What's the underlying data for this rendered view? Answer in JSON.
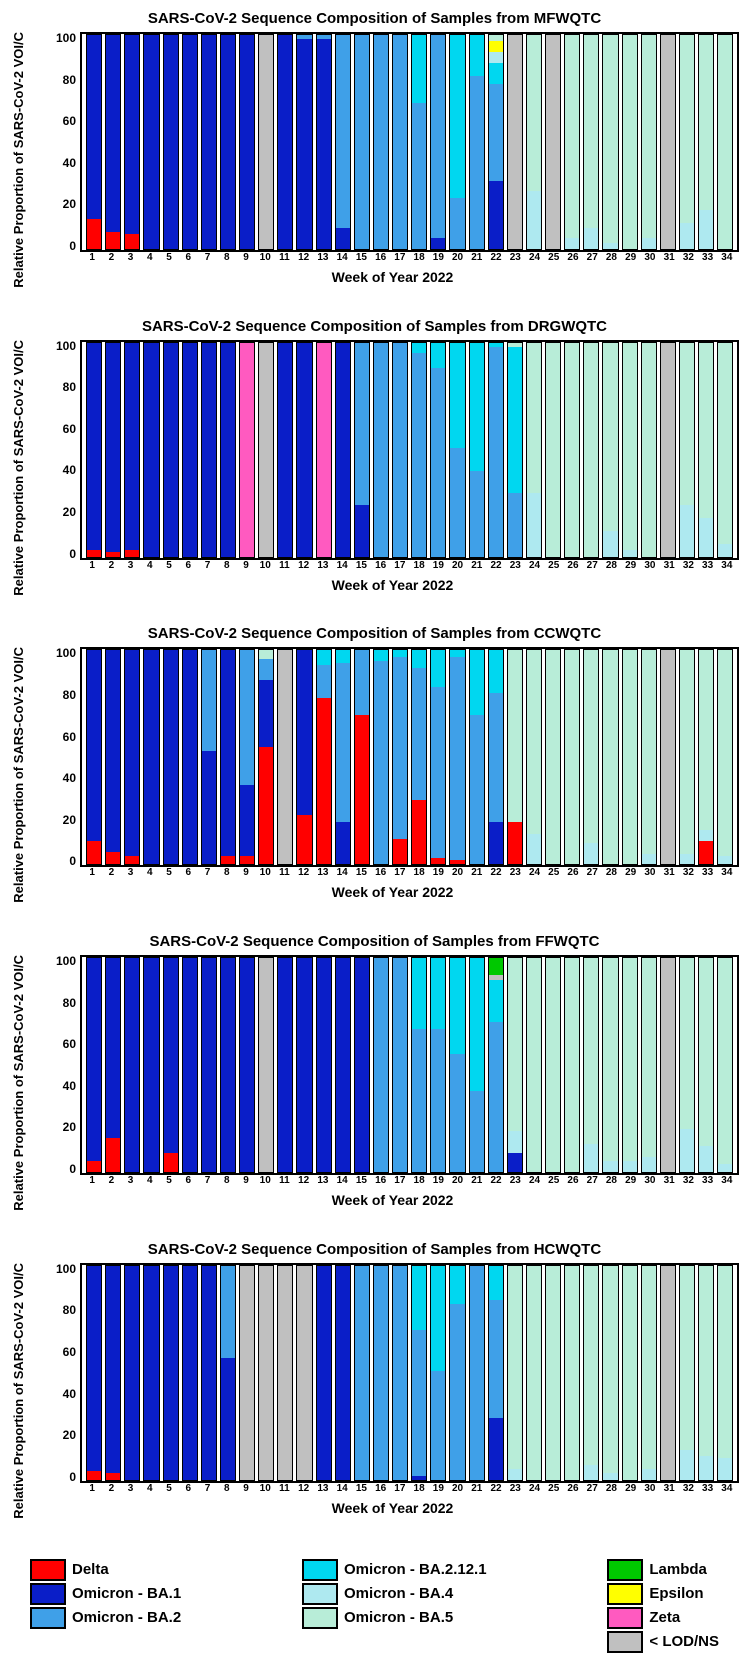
{
  "colors": {
    "Delta": "#ff0000",
    "BA1": "#0a1ec8",
    "BA2": "#3fa0e8",
    "BA2121": "#00d7f0",
    "BA4": "#aee9f0",
    "BA5": "#b8edd8",
    "Lambda": "#00c800",
    "Epsilon": "#ffff00",
    "Zeta": "#ff5ac0",
    "LOD": "#c0c0c0"
  },
  "legend": [
    [
      {
        "label": "Delta",
        "color": "Delta"
      },
      {
        "label": "Omicron - BA.1",
        "color": "BA1"
      },
      {
        "label": "Omicron - BA.2",
        "color": "BA2"
      }
    ],
    [
      {
        "label": "Omicron - BA.2.12.1",
        "color": "BA2121"
      },
      {
        "label": "Omicron - BA.4",
        "color": "BA4"
      },
      {
        "label": "Omicron - BA.5",
        "color": "BA5"
      }
    ],
    [
      {
        "label": "Lambda",
        "color": "Lambda"
      },
      {
        "label": "Epsilon",
        "color": "Epsilon"
      },
      {
        "label": "Zeta",
        "color": "Zeta"
      },
      {
        "label": "< LOD/NS",
        "color": "LOD"
      }
    ]
  ],
  "shared": {
    "weeks": [
      "1",
      "2",
      "3",
      "4",
      "5",
      "6",
      "7",
      "8",
      "9",
      "10",
      "11",
      "12",
      "13",
      "14",
      "15",
      "16",
      "17",
      "18",
      "19",
      "20",
      "21",
      "22",
      "23",
      "24",
      "25",
      "26",
      "27",
      "28",
      "29",
      "30",
      "31",
      "32",
      "33",
      "34"
    ],
    "xlabel": "Week of Year 2022",
    "ylabel": "Relative Proportion\nof SARS-CoV-2 VOI/C",
    "yticks": [
      "100",
      "80",
      "60",
      "40",
      "20",
      "0"
    ]
  },
  "charts": [
    {
      "title": "SARS-CoV-2 Sequence Composition of Samples from MFWQTC",
      "bars": [
        {
          "Delta": 14,
          "BA1": 86
        },
        {
          "Delta": 8,
          "BA1": 92
        },
        {
          "Delta": 7,
          "BA1": 93
        },
        {
          "BA1": 100
        },
        {
          "BA1": 100
        },
        {
          "BA1": 100
        },
        {
          "BA1": 100
        },
        {
          "BA1": 100
        },
        {
          "BA1": 100
        },
        {
          "LOD": 100
        },
        {
          "BA1": 100
        },
        {
          "BA1": 98,
          "BA2": 2
        },
        {
          "BA1": 98,
          "BA2": 2
        },
        {
          "BA1": 10,
          "BA2": 90
        },
        {
          "BA2": 100
        },
        {
          "BA2": 100
        },
        {
          "BA2": 100
        },
        {
          "BA2": 68,
          "BA2121": 32
        },
        {
          "BA1": 5,
          "BA2": 95
        },
        {
          "BA2": 24,
          "BA2121": 76
        },
        {
          "BA2": 81,
          "BA2121": 19
        },
        {
          "BA1": 32,
          "BA2": 45,
          "BA2121": 10,
          "BA4": 5,
          "Epsilon": 5,
          "BA5": 3
        },
        {
          "LOD": 100
        },
        {
          "BA4": 27,
          "BA5": 73
        },
        {
          "LOD": 100
        },
        {
          "BA4": 5,
          "BA5": 95
        },
        {
          "BA4": 10,
          "BA5": 90
        },
        {
          "BA4": 3,
          "BA5": 97
        },
        {
          "BA5": 100
        },
        {
          "BA4": 5,
          "BA5": 95
        },
        {
          "LOD": 100
        },
        {
          "BA4": 12,
          "BA5": 88
        },
        {
          "BA4": 18,
          "BA5": 82
        },
        {
          "BA5": 100
        }
      ]
    },
    {
      "title": "SARS-CoV-2 Sequence Composition of Samples from DRGWQTC",
      "bars": [
        {
          "Delta": 3,
          "BA1": 97
        },
        {
          "Delta": 2,
          "BA1": 98
        },
        {
          "Delta": 3,
          "BA1": 97
        },
        {
          "BA1": 100
        },
        {
          "BA1": 100
        },
        {
          "BA1": 100
        },
        {
          "BA1": 100
        },
        {
          "BA1": 100
        },
        {
          "Zeta": 100
        },
        {
          "LOD": 100
        },
        {
          "BA1": 100
        },
        {
          "BA1": 100
        },
        {
          "Zeta": 100
        },
        {
          "BA1": 100
        },
        {
          "BA1": 24,
          "BA2": 76
        },
        {
          "BA2": 100
        },
        {
          "BA2": 100
        },
        {
          "BA2": 95,
          "BA2121": 5
        },
        {
          "BA2": 88,
          "BA2121": 12
        },
        {
          "BA2": 51,
          "BA2121": 49
        },
        {
          "BA2": 40,
          "BA2121": 60
        },
        {
          "BA2": 98,
          "BA2121": 2
        },
        {
          "BA2": 30,
          "BA2121": 68,
          "BA5": 2
        },
        {
          "BA4": 30,
          "BA5": 70
        },
        {
          "BA5": 100
        },
        {
          "BA5": 100
        },
        {
          "BA5": 100
        },
        {
          "BA4": 12,
          "BA5": 88
        },
        {
          "BA4": 3,
          "BA5": 97
        },
        {
          "BA5": 100
        },
        {
          "LOD": 100
        },
        {
          "BA4": 24,
          "BA5": 76
        },
        {
          "BA4": 18,
          "BA5": 82
        },
        {
          "BA4": 6,
          "BA5": 94
        }
      ]
    },
    {
      "title": "SARS-CoV-2 Sequence Composition of Samples from CCWQTC",
      "bars": [
        {
          "Delta": 11,
          "BA1": 89
        },
        {
          "Delta": 6,
          "BA1": 94
        },
        {
          "Delta": 4,
          "BA1": 96
        },
        {
          "BA1": 100
        },
        {
          "BA1": 100
        },
        {
          "BA1": 100
        },
        {
          "BA1": 53,
          "BA2": 47
        },
        {
          "Delta": 4,
          "BA1": 96
        },
        {
          "Delta": 4,
          "BA1": 33,
          "BA2": 63
        },
        {
          "Delta": 55,
          "BA1": 31,
          "BA2": 10,
          "BA5": 4
        },
        {
          "LOD": 100
        },
        {
          "Delta": 23,
          "BA1": 77
        },
        {
          "Delta": 78,
          "BA2": 15,
          "BA2121": 7
        },
        {
          "BA1": 20,
          "BA2": 74,
          "BA2121": 6
        },
        {
          "Delta": 70,
          "BA2": 30
        },
        {
          "BA2": 95,
          "BA2121": 5
        },
        {
          "Delta": 12,
          "BA2": 85,
          "BA2121": 3
        },
        {
          "Delta": 30,
          "BA2": 62,
          "BA2121": 8
        },
        {
          "Delta": 3,
          "BA2": 80,
          "BA2121": 17
        },
        {
          "Delta": 2,
          "BA2": 95,
          "BA2121": 3
        },
        {
          "BA2": 70,
          "BA2121": 30
        },
        {
          "BA1": 20,
          "BA2": 60,
          "BA2121": 20
        },
        {
          "Delta": 20,
          "BA5": 80
        },
        {
          "BA4": 14,
          "BA5": 86
        },
        {
          "BA5": 100
        },
        {
          "BA5": 100
        },
        {
          "BA4": 10,
          "BA5": 90
        },
        {
          "BA5": 100
        },
        {
          "BA5": 100
        },
        {
          "BA4": 5,
          "BA5": 95
        },
        {
          "LOD": 100
        },
        {
          "BA4": 5,
          "BA5": 95
        },
        {
          "Delta": 11,
          "BA4": 5,
          "BA5": 84
        },
        {
          "BA4": 4,
          "BA5": 96
        }
      ]
    },
    {
      "title": "SARS-CoV-2 Sequence Composition of Samples from FFWQTC",
      "bars": [
        {
          "Delta": 5,
          "BA1": 95
        },
        {
          "Delta": 16,
          "BA1": 84
        },
        {
          "BA1": 100
        },
        {
          "BA1": 100
        },
        {
          "Delta": 9,
          "BA1": 91
        },
        {
          "BA1": 100
        },
        {
          "BA1": 100
        },
        {
          "BA1": 100
        },
        {
          "BA1": 100
        },
        {
          "LOD": 100
        },
        {
          "BA1": 100
        },
        {
          "BA1": 100
        },
        {
          "BA1": 100
        },
        {
          "BA1": 100
        },
        {
          "BA1": 100
        },
        {
          "BA2": 100
        },
        {
          "BA2": 100
        },
        {
          "BA2": 67,
          "BA2121": 33
        },
        {
          "BA2": 67,
          "BA2121": 33
        },
        {
          "BA2": 55,
          "BA2121": 45
        },
        {
          "BA2": 38,
          "BA2121": 62
        },
        {
          "BA2": 70,
          "LOD": 2,
          "BA2121": 20,
          "Lambda": 8
        },
        {
          "BA1": 9,
          "BA4": 10,
          "BA5": 81
        },
        {
          "BA5": 100
        },
        {
          "BA5": 100
        },
        {
          "BA5": 100
        },
        {
          "BA4": 13,
          "BA5": 87
        },
        {
          "BA4": 5,
          "BA5": 95
        },
        {
          "BA4": 5,
          "BA5": 95
        },
        {
          "BA4": 7,
          "BA5": 93
        },
        {
          "LOD": 100
        },
        {
          "BA4": 20,
          "BA5": 80
        },
        {
          "BA4": 12,
          "BA5": 88
        },
        {
          "BA4": 4,
          "BA5": 96
        }
      ]
    },
    {
      "title": "SARS-CoV-2 Sequence Composition of Samples from HCWQTC",
      "bars": [
        {
          "Delta": 4,
          "BA1": 96
        },
        {
          "Delta": 3,
          "BA1": 97
        },
        {
          "BA1": 100
        },
        {
          "BA1": 100
        },
        {
          "BA1": 100
        },
        {
          "BA1": 100
        },
        {
          "BA1": 100
        },
        {
          "BA1": 57,
          "BA2": 43
        },
        {
          "LOD": 100
        },
        {
          "LOD": 100
        },
        {
          "LOD": 100
        },
        {
          "LOD": 100
        },
        {
          "BA1": 100
        },
        {
          "BA1": 100
        },
        {
          "BA2": 100
        },
        {
          "BA2": 100
        },
        {
          "BA2": 100
        },
        {
          "BA1": 2,
          "BA2": 68,
          "BA2121": 30
        },
        {
          "BA2": 51,
          "BA2121": 49
        },
        {
          "BA2": 82,
          "BA2121": 18
        },
        {
          "BA2": 100
        },
        {
          "BA1": 29,
          "BA2": 55,
          "BA2121": 16
        },
        {
          "BA4": 5,
          "BA5": 95
        },
        {
          "BA5": 100
        },
        {
          "BA5": 100
        },
        {
          "BA5": 100
        },
        {
          "BA4": 7,
          "BA5": 93
        },
        {
          "BA4": 3,
          "BA5": 97
        },
        {
          "BA5": 100
        },
        {
          "BA4": 5,
          "BA5": 95
        },
        {
          "LOD": 100
        },
        {
          "BA4": 14,
          "BA5": 86
        },
        {
          "BA4": 11,
          "BA5": 89
        },
        {
          "BA4": 10,
          "BA5": 90
        }
      ]
    }
  ]
}
